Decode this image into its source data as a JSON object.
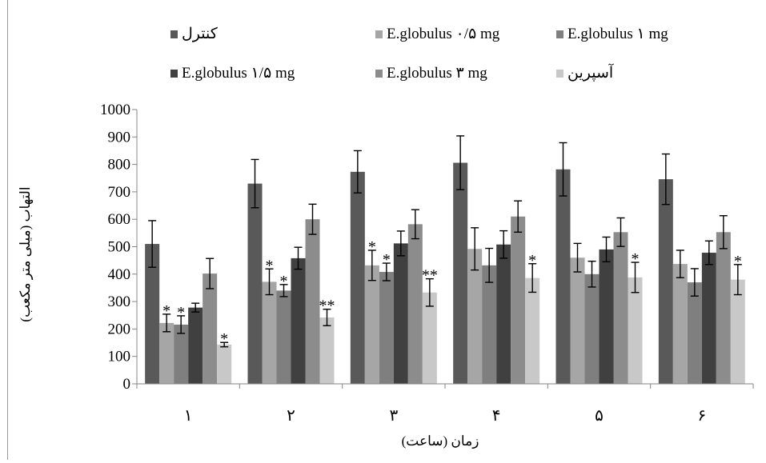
{
  "chart_data": {
    "type": "bar",
    "categories": [
      "۱",
      "۲",
      "۳",
      "۴",
      "۵",
      "۶"
    ],
    "xlabel": "زمان (ساعت)",
    "ylabel": "التهاب (میلی متر مکعب)",
    "ylim": [
      0,
      1000
    ],
    "yticks": [
      "0",
      "100",
      "200",
      "300",
      "400",
      "500",
      "600",
      "700",
      "800",
      "900",
      "1000"
    ],
    "grid": false,
    "legend_position": "top",
    "series": [
      {
        "name": "کنترل",
        "color": "#595959",
        "values": [
          510,
          730,
          773,
          806,
          782,
          746
        ],
        "errors": [
          85,
          88,
          77,
          98,
          97,
          92
        ],
        "marks": [
          "",
          "",
          "",
          "",
          "",
          ""
        ]
      },
      {
        "name": "E.globulus ۰/۵ mg",
        "color": "#a6a6a6",
        "values": [
          222,
          372,
          432,
          492,
          460,
          437
        ],
        "errors": [
          32,
          47,
          55,
          77,
          52,
          50
        ],
        "marks": [
          "*",
          "*",
          "*",
          "",
          "",
          ""
        ]
      },
      {
        "name": "E.globulus ۱ mg",
        "color": "#7f7f7f",
        "values": [
          216,
          340,
          408,
          432,
          400,
          370
        ],
        "errors": [
          32,
          22,
          32,
          62,
          47,
          50
        ],
        "marks": [
          "*",
          "*",
          "*",
          "",
          "",
          ""
        ]
      },
      {
        "name": "E.globulus ۱/۵ mg",
        "color": "#404040",
        "values": [
          278,
          458,
          512,
          508,
          490,
          478
        ],
        "errors": [
          16,
          40,
          45,
          50,
          45,
          43
        ],
        "marks": [
          "",
          "",
          "",
          "",
          "",
          ""
        ]
      },
      {
        "name": "E.globulus ۳ mg",
        "color": "#8c8c8c",
        "values": [
          402,
          600,
          582,
          610,
          553,
          553
        ],
        "errors": [
          55,
          55,
          53,
          57,
          52,
          60
        ],
        "marks": [
          "",
          "",
          "",
          "",
          "",
          ""
        ]
      },
      {
        "name": "آسپرین",
        "color": "#c8c8c8",
        "values": [
          143,
          242,
          333,
          386,
          388,
          380
        ],
        "errors": [
          8,
          30,
          50,
          52,
          55,
          55
        ],
        "marks": [
          "*",
          "**",
          "**",
          "*",
          "*",
          "*"
        ]
      }
    ]
  }
}
